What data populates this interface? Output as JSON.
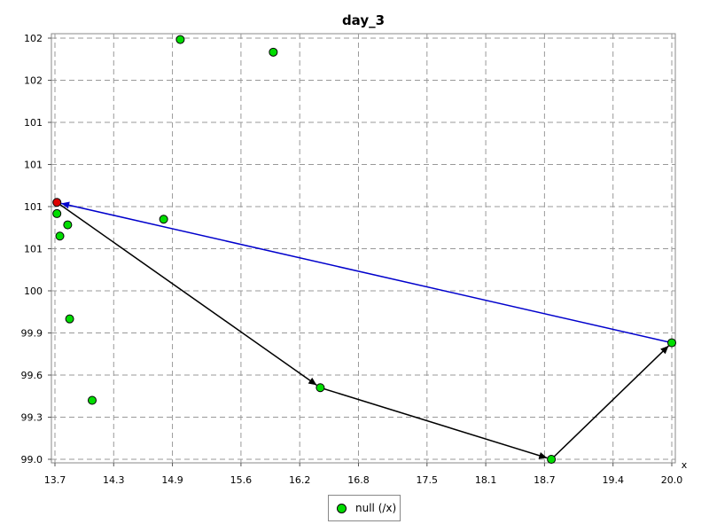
{
  "chart_data": {
    "type": "scatter",
    "title": "day_3",
    "xlabel": "x",
    "ylabel": "",
    "xlim": [
      13.7,
      20.0
    ],
    "ylim": [
      99.0,
      102.0
    ],
    "x_ticks": [
      {
        "value": 13.7,
        "label": "13.7"
      },
      {
        "value": 14.3,
        "label": "14.3"
      },
      {
        "value": 14.9,
        "label": "14.9"
      },
      {
        "value": 15.6,
        "label": "15.6"
      },
      {
        "value": 16.2,
        "label": "16.2"
      },
      {
        "value": 16.8,
        "label": "16.8"
      },
      {
        "value": 17.5,
        "label": "17.5"
      },
      {
        "value": 18.1,
        "label": "18.1"
      },
      {
        "value": 18.7,
        "label": "18.7"
      },
      {
        "value": 19.4,
        "label": "19.4"
      },
      {
        "value": 20.0,
        "label": "20.0"
      }
    ],
    "y_ticks": [
      {
        "value": 99.0,
        "label": "99.0"
      },
      {
        "value": 99.3,
        "label": "99.3"
      },
      {
        "value": 99.6,
        "label": "99.6"
      },
      {
        "value": 99.9,
        "label": "99.9"
      },
      {
        "value": 100.2,
        "label": "100"
      },
      {
        "value": 100.5,
        "label": "101"
      },
      {
        "value": 100.8,
        "label": "101"
      },
      {
        "value": 101.1,
        "label": "101"
      },
      {
        "value": 101.4,
        "label": "101"
      },
      {
        "value": 101.7,
        "label": "102"
      },
      {
        "value": 102.0,
        "label": "102"
      }
    ],
    "grid": true,
    "legend_placement": "bottom-center",
    "series": [
      {
        "name": "null (/x)",
        "color": "#00dd00",
        "points": [
          {
            "x": 13.72,
            "y": 100.75
          },
          {
            "x": 13.75,
            "y": 100.59
          },
          {
            "x": 13.83,
            "y": 100.67
          },
          {
            "x": 13.85,
            "y": 100.0
          },
          {
            "x": 14.08,
            "y": 99.42
          },
          {
            "x": 14.98,
            "y": 101.99
          },
          {
            "x": 14.81,
            "y": 100.71
          },
          {
            "x": 15.93,
            "y": 101.9
          },
          {
            "x": 16.41,
            "y": 99.51
          },
          {
            "x": 18.77,
            "y": 99.0
          },
          {
            "x": 20.0,
            "y": 99.83
          }
        ]
      }
    ],
    "highlight_point": {
      "x": 13.72,
      "y": 100.83,
      "color": "#dd0000"
    },
    "path_arrows": [
      {
        "from": {
          "x": 13.72,
          "y": 100.83
        },
        "to": {
          "x": 16.41,
          "y": 99.51
        },
        "color": "#000000"
      },
      {
        "from": {
          "x": 16.41,
          "y": 99.51
        },
        "to": {
          "x": 18.77,
          "y": 99.0
        },
        "color": "#000000"
      },
      {
        "from": {
          "x": 18.77,
          "y": 99.0
        },
        "to": {
          "x": 20.0,
          "y": 99.83
        },
        "color": "#000000"
      },
      {
        "from": {
          "x": 20.0,
          "y": 99.83
        },
        "to": {
          "x": 13.72,
          "y": 100.83
        },
        "color": "#0000cc"
      }
    ]
  },
  "legend": {
    "label": "null (/x)",
    "marker_color": "#00dd00"
  }
}
